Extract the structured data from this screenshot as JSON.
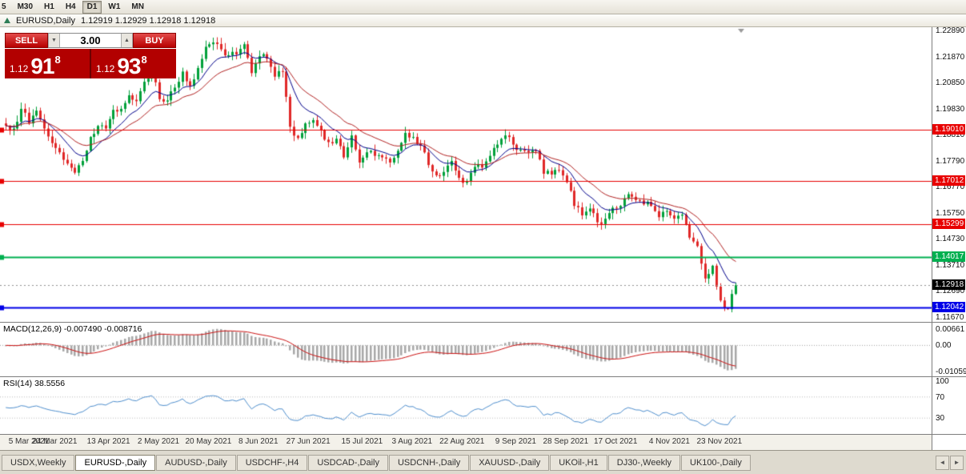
{
  "toolbar": {
    "timeframes": [
      {
        "label": "5",
        "active": false
      },
      {
        "label": "M30",
        "active": false
      },
      {
        "label": "H1",
        "active": false
      },
      {
        "label": "H4",
        "active": false
      },
      {
        "label": "D1",
        "active": true
      },
      {
        "label": "W1",
        "active": false
      },
      {
        "label": "MN",
        "active": false
      }
    ]
  },
  "chart_window": {
    "title": {
      "symbol_period": "EURUSD,Daily",
      "quotes": "1.12919 1.12929 1.12918 1.12918"
    },
    "trade_widget": {
      "sell_label": "SELL",
      "buy_label": "BUY",
      "volume": "3.00",
      "sell_price": {
        "prefix": "1.12",
        "big": "91",
        "sup": "8"
      },
      "buy_price": {
        "prefix": "1.12",
        "big": "93",
        "sup": "8"
      }
    }
  },
  "icons": {
    "volume_up": "▲",
    "volume_down": "▼",
    "tab_prev": "◄",
    "tab_next": "►"
  },
  "chart_data": {
    "type": "candlestick",
    "symbol": "EURUSD",
    "period": "Daily",
    "price_axis": {
      "ticks": [
        "1.22890",
        "1.21870",
        "1.20850",
        "1.19830",
        "1.18810",
        "1.17790",
        "1.16770",
        "1.15750",
        "1.14730",
        "1.13710",
        "1.12690",
        "1.11670"
      ]
    },
    "levels": [
      {
        "price": 1.1901,
        "label": "1.19010",
        "color": "#e80000",
        "width": 1
      },
      {
        "price": 1.17012,
        "label": "1.17012",
        "color": "#e80000",
        "width": 1
      },
      {
        "price": 1.15299,
        "label": "1.15299",
        "color": "#e80000",
        "width": 1
      },
      {
        "price": 1.14017,
        "label": "1.14017",
        "color": "#00b050",
        "width": 2
      },
      {
        "price": 1.12042,
        "label": "1.12042",
        "color": "#0000e8",
        "width": 2
      }
    ],
    "bid_level": {
      "price": 1.12918,
      "label": "1.12918",
      "color": "#000000"
    },
    "close_path_estimate": [
      1.1916,
      1.1905,
      1.1982,
      1.1925,
      1.1975,
      1.1905,
      1.1848,
      1.1812,
      1.1768,
      1.1732,
      1.1778,
      1.1872,
      1.1915,
      1.1905,
      1.1978,
      1.1982,
      1.2035,
      1.2012,
      1.2088,
      1.2125,
      1.202,
      1.2015,
      1.2065,
      1.2128,
      1.2072,
      1.2142,
      1.2225,
      1.2242,
      1.2215,
      1.2192,
      1.2195,
      1.2235,
      1.2122,
      1.2188,
      1.2178,
      1.2108,
      1.2128,
      1.1912,
      1.1868,
      1.1925,
      1.1938,
      1.1898,
      1.1852,
      1.1865,
      1.1792,
      1.1878,
      1.1772,
      1.1812,
      1.1798,
      1.1792,
      1.1772,
      1.1818,
      1.1888,
      1.1872,
      1.1838,
      1.1762,
      1.1722,
      1.1735,
      1.1778,
      1.1712,
      1.1698,
      1.1755,
      1.1752,
      1.1798,
      1.1842,
      1.1878,
      1.1842,
      1.1822,
      1.1812,
      1.1818,
      1.1728,
      1.1725,
      1.1742,
      1.1695,
      1.1602,
      1.1565,
      1.1592,
      1.1538,
      1.1552,
      1.1595,
      1.1602,
      1.1648,
      1.1625,
      1.1608,
      1.1602,
      1.1558,
      1.1582,
      1.1552,
      1.1568,
      1.1478,
      1.1445,
      1.1318,
      1.1368,
      1.1232,
      1.1198,
      1.1292
    ],
    "last_close": 1.12918,
    "x_axis": {
      "labels": [
        {
          "text": "5 Mar 2021",
          "bar": 0
        },
        {
          "text": "24 Mar 2021",
          "bar": 13
        },
        {
          "text": "13 Apr 2021",
          "bar": 27
        },
        {
          "text": "2 May 2021",
          "bar": 40
        },
        {
          "text": "20 May 2021",
          "bar": 53
        },
        {
          "text": "8 Jun 2021",
          "bar": 66
        },
        {
          "text": "27 Jun 2021",
          "bar": 79
        },
        {
          "text": "15 Jul 2021",
          "bar": 93
        },
        {
          "text": "3 Aug 2021",
          "bar": 106
        },
        {
          "text": "22 Aug 2021",
          "bar": 119
        },
        {
          "text": "9 Sep 2021",
          "bar": 133
        },
        {
          "text": "28 Sep 2021",
          "bar": 146
        },
        {
          "text": "17 Oct 2021",
          "bar": 159
        },
        {
          "text": "4 Nov 2021",
          "bar": 173
        },
        {
          "text": "23 Nov 2021",
          "bar": 186
        }
      ]
    },
    "moving_averages": [
      {
        "period": 10,
        "color": "#00008b"
      },
      {
        "period": 21,
        "color": "#b22222"
      }
    ],
    "indicators": {
      "macd": {
        "label": "MACD(12,26,9)",
        "values_text": "-0.007490 -0.008716",
        "params": [
          12,
          26,
          9
        ],
        "axis": [
          "0.00661",
          "0.00",
          "-0.01059"
        ]
      },
      "rsi": {
        "label": "RSI(14)",
        "value_text": "38.5556",
        "period": 14,
        "axis": [
          100,
          70,
          30
        ],
        "levels": [
          70,
          30
        ]
      }
    },
    "colors": {
      "bull": "#00a03a",
      "bear": "#e02828",
      "macd_hist": "#a8a8a8",
      "macd_signal": "#cc1111",
      "rsi_line": "#4f8fce"
    }
  },
  "tabs": {
    "items": [
      {
        "label": "USDX,Weekly",
        "active": false
      },
      {
        "label": "EURUSD-,Daily",
        "active": true
      },
      {
        "label": "AUDUSD-,Daily",
        "active": false
      },
      {
        "label": "USDCHF-,H4",
        "active": false
      },
      {
        "label": "USDCAD-,Daily",
        "active": false
      },
      {
        "label": "USDCNH-,Daily",
        "active": false
      },
      {
        "label": "XAUUSD-,Daily",
        "active": false
      },
      {
        "label": "UKOil-,H1",
        "active": false
      },
      {
        "label": "DJ30-,Weekly",
        "active": false
      },
      {
        "label": "UK100-,Daily",
        "active": false
      }
    ]
  }
}
